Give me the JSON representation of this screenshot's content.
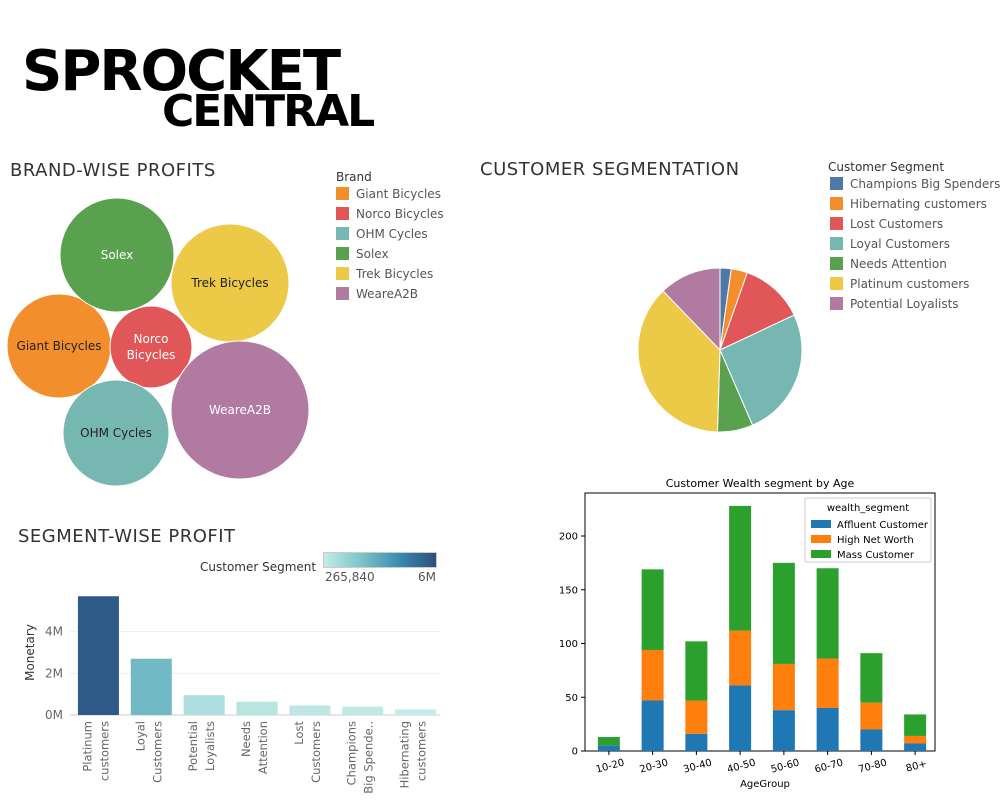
{
  "logo": {
    "line1": "SPROCKET",
    "line2": "CENTRAL"
  },
  "brand_panel": {
    "title": "BRAND-WISE PROFITS",
    "legend_title": "Brand"
  },
  "segmentation_panel": {
    "title": "CUSTOMER SEGMENTATION",
    "legend_title": "Customer Segment"
  },
  "segment_profit_panel": {
    "title": "SEGMENT-WISE PROFIT",
    "legend_title": "Customer Segment",
    "gradient_min": "265,840",
    "gradient_max": "6M"
  },
  "colors": {
    "Giant Bicycles": "#f28e2b",
    "Norco Bicycles": "#e15759",
    "OHM Cycles": "#76b7b2",
    "Solex": "#59a14f",
    "Trek Bicycles": "#edc948",
    "WeareA2B": "#b07aa1",
    "Champions Big Spenders": "#4e79a7",
    "Hibernating customers": "#f28e2b",
    "Lost Customers": "#e15759",
    "Loyal Customers": "#76b7b2",
    "Needs Attention": "#59a14f",
    "Platinum customers": "#edc948",
    "Potential Loyalists": "#b07aa1"
  },
  "chart_data": [
    {
      "type": "bubble",
      "title": "BRAND-WISE PROFITS",
      "legend_title": "Brand",
      "categories": [
        "Giant Bicycles",
        "Norco Bicycles",
        "OHM Cycles",
        "Solex",
        "Trek Bicycles",
        "WeareA2B"
      ],
      "bubble_labels": [
        "Giant Bicycles",
        "Norco\nBicycles",
        "OHM Cycles",
        "Solex",
        "Trek Bicycles",
        "WeareA2B"
      ],
      "relative_size": [
        0.52,
        0.41,
        0.53,
        0.57,
        0.59,
        0.69
      ]
    },
    {
      "type": "pie",
      "title": "CUSTOMER SEGMENTATION",
      "legend_title": "Customer Segment",
      "categories": [
        "Champions Big Spenders",
        "Hibernating customers",
        "Lost Customers",
        "Loyal Customers",
        "Needs Attention",
        "Platinum customers",
        "Potential Loyalists"
      ],
      "values": [
        2.2,
        3.2,
        12.6,
        25.5,
        7.0,
        37.3,
        12.2
      ],
      "unit": "percent"
    },
    {
      "type": "bar",
      "title": "SEGMENT-WISE PROFIT",
      "ylabel": "Monetary",
      "categories": [
        "Platinum\ncustomers",
        "Loyal\nCustomers",
        "Potential\nLoyalists",
        "Needs\nAttention",
        "Lost\nCustomers",
        "Champions\nBig Spende..",
        "Hibernating\ncustomers"
      ],
      "values": [
        5700000,
        2700000,
        950000,
        640000,
        460000,
        400000,
        265840
      ],
      "yticks": [
        {
          "v": 0,
          "label": "0M"
        },
        {
          "v": 2000000,
          "label": "2M"
        },
        {
          "v": 4000000,
          "label": "4M"
        }
      ],
      "ylim": [
        0,
        6000000
      ],
      "color_legend": {
        "title": "Customer Segment",
        "min_label": "265,840",
        "max_label": "6M"
      }
    },
    {
      "type": "bar",
      "stacked": true,
      "title": "Customer Wealth segment by Age",
      "xlabel": "AgeGroup",
      "legend_title": "wealth_segment",
      "categories": [
        "10-20",
        "20-30",
        "30-40",
        "40-50",
        "50-60",
        "60-70",
        "70-80",
        "80+"
      ],
      "series": [
        {
          "name": "Affluent Customer",
          "color": "#1f77b4",
          "values": [
            5,
            47,
            16,
            61,
            38,
            40,
            20,
            7
          ]
        },
        {
          "name": "High Net Worth",
          "color": "#ff7f0e",
          "values": [
            0,
            47,
            31,
            51,
            43,
            46,
            25,
            7
          ]
        },
        {
          "name": "Mass Customer",
          "color": "#2ca02c",
          "values": [
            8,
            75,
            55,
            116,
            94,
            84,
            46,
            20
          ]
        }
      ],
      "ylim": [
        0,
        240
      ],
      "yticks": [
        0,
        50,
        100,
        150,
        200
      ],
      "legend_position": "top-right"
    }
  ]
}
